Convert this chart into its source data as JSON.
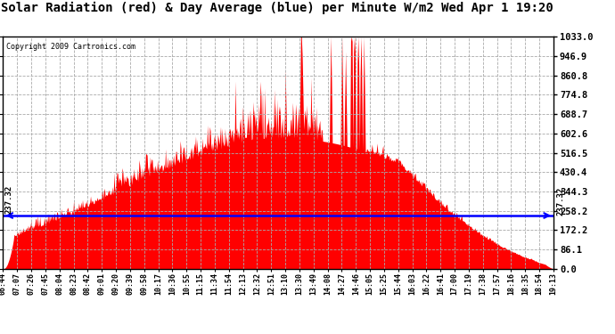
{
  "title": "Solar Radiation (red) & Day Average (blue) per Minute W/m2 Wed Apr 1 19:20",
  "copyright": "Copyright 2009 Cartronics.com",
  "day_average": 237.32,
  "y_max": 1033.0,
  "y_min": 0.0,
  "y_ticks": [
    0.0,
    86.1,
    172.2,
    258.2,
    344.3,
    430.4,
    516.5,
    602.6,
    688.7,
    774.8,
    860.8,
    946.9,
    1033.0
  ],
  "bg_color": "#ffffff",
  "fill_color": "#ff0000",
  "line_color": "#0000ff",
  "grid_color": "#aaaaaa",
  "title_fontsize": 11,
  "x_labels": [
    "06:44",
    "07:07",
    "07:26",
    "07:45",
    "08:04",
    "08:23",
    "08:42",
    "09:01",
    "09:20",
    "09:39",
    "09:58",
    "10:17",
    "10:36",
    "10:55",
    "11:15",
    "11:34",
    "11:54",
    "12:13",
    "12:32",
    "12:51",
    "13:10",
    "13:30",
    "13:49",
    "14:08",
    "14:27",
    "14:46",
    "15:05",
    "15:25",
    "15:44",
    "16:03",
    "16:22",
    "16:41",
    "17:00",
    "17:19",
    "17:38",
    "17:57",
    "18:16",
    "18:35",
    "18:54",
    "19:13"
  ],
  "num_points": 750
}
